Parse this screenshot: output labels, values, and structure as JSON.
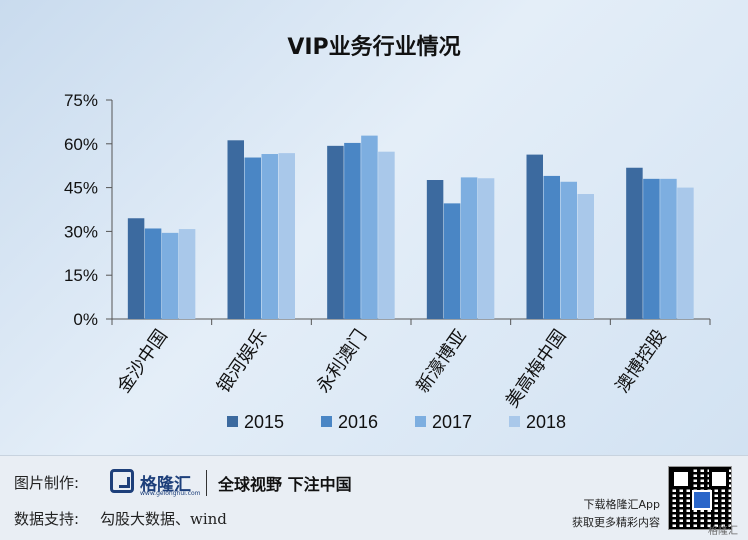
{
  "chart_data": {
    "type": "bar",
    "title": "VIP业务行业情况",
    "categories": [
      "金沙中国",
      "银河娱乐",
      "永利澳门",
      "新濠博亚",
      "美高梅中国",
      "澳博控股"
    ],
    "series": [
      {
        "name": "2015",
        "values": [
          34.5,
          61.2,
          59.3,
          47.6,
          56.3,
          51.8
        ]
      },
      {
        "name": "2016",
        "values": [
          31.0,
          55.3,
          60.3,
          39.6,
          49.0,
          48.0
        ]
      },
      {
        "name": "2017",
        "values": [
          29.5,
          56.5,
          62.8,
          48.5,
          47.0,
          48.0
        ]
      },
      {
        "name": "2018",
        "values": [
          30.8,
          56.8,
          57.3,
          48.2,
          42.8,
          45.0
        ]
      }
    ],
    "y_ticks": [
      "0%",
      "15%",
      "30%",
      "45%",
      "60%",
      "75%"
    ],
    "ylim": [
      0,
      75
    ],
    "ylabel": "",
    "xlabel": "",
    "grid": false,
    "legend_position": "bottom",
    "colors": [
      "#3c6a9f",
      "#4a86c5",
      "#7daee0",
      "#a9c8ea"
    ]
  },
  "footer": {
    "image_credit_label": "图片制作:",
    "logo_text": "格隆汇",
    "logo_subtext": "www.gelonghui.com",
    "slogan": "全球视野 下注中国",
    "data_source_label": "数据支持:",
    "data_source": "勾股大数据、wind",
    "app_line1": "下载格隆汇App",
    "app_line2": "获取更多精彩内容",
    "corner_mark": "格隆汇"
  }
}
